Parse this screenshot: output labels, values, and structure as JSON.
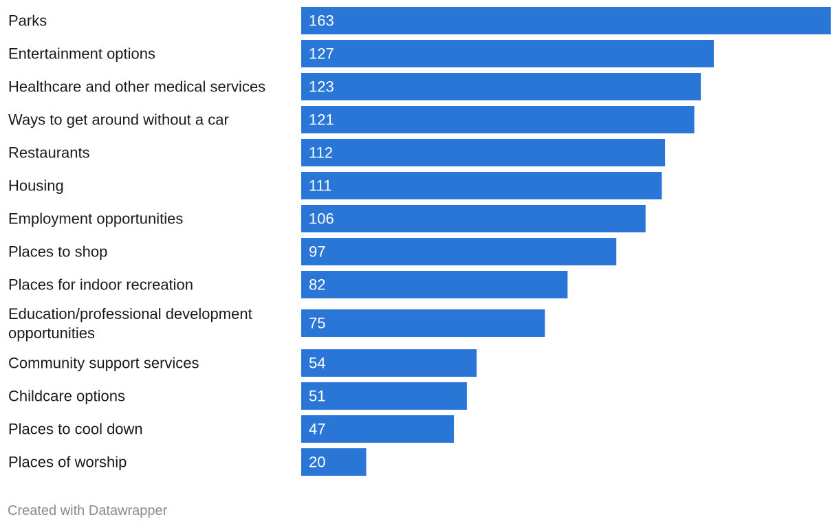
{
  "chart_data": {
    "type": "bar",
    "orientation": "horizontal",
    "title": "",
    "xlabel": "",
    "ylabel": "",
    "grid": false,
    "xlim": [
      0,
      163
    ],
    "bar_color": "#2a76d6",
    "categories": [
      "Parks",
      "Entertainment options",
      "Healthcare and other medical services",
      "Ways to get around without a car",
      "Restaurants",
      "Housing",
      "Employment opportunities",
      "Places to shop",
      "Places for indoor recreation",
      "Education/professional development opportunities",
      "Community support services",
      "Childcare options",
      "Places to cool down",
      "Places of worship"
    ],
    "values": [
      163,
      127,
      123,
      121,
      112,
      111,
      106,
      97,
      82,
      75,
      54,
      51,
      47,
      20
    ]
  },
  "footer": {
    "credit": "Created with Datawrapper"
  }
}
